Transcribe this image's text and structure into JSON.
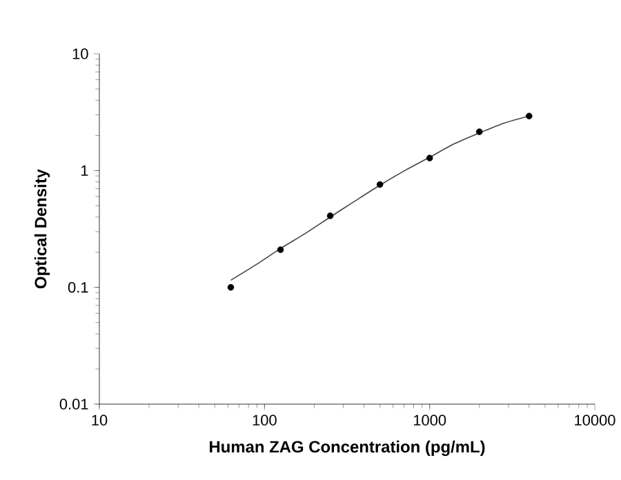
{
  "chart_data": {
    "type": "scatter",
    "xlabel": "Human ZAG Concentration (pg/mL)",
    "ylabel": "Optical Density",
    "log": "xy",
    "xlim": [
      10,
      10000
    ],
    "ylim": [
      0.01,
      10
    ],
    "xticks": [
      10,
      100,
      1000,
      10000
    ],
    "yticks": [
      0.01,
      0.1,
      1,
      10
    ],
    "grid": false,
    "legend": false,
    "series": [
      {
        "color": "#000000",
        "marker": "circle",
        "x": [
          62.5,
          125,
          250,
          500,
          1000,
          2000,
          4000
        ],
        "values": [
          0.1,
          0.21,
          0.41,
          0.76,
          1.28,
          2.15,
          2.93
        ]
      },
      {
        "type": "line",
        "color": "#444444",
        "marker": "none",
        "line_style": "solid",
        "x": [
          62.5,
          88,
          125,
          177,
          250,
          354,
          500,
          707,
          1000,
          1414,
          2000,
          2828,
          4000
        ],
        "values": [
          0.115,
          0.155,
          0.215,
          0.29,
          0.4,
          0.55,
          0.75,
          1.0,
          1.3,
          1.7,
          2.1,
          2.55,
          2.93
        ]
      }
    ]
  }
}
